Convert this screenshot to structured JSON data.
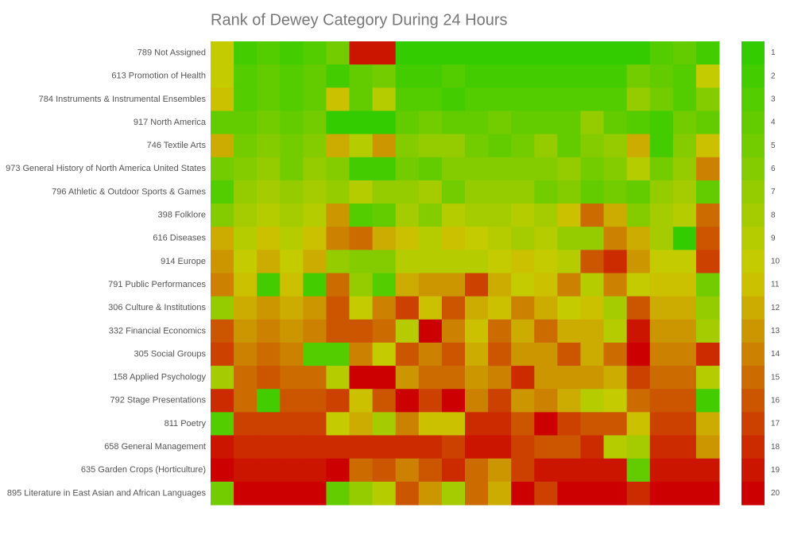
{
  "chart_data": {
    "type": "heatmap",
    "title": "Rank of Dewey Category During 24 Hours",
    "rows": [
      "789 Not Assigned",
      "613 Promotion of Health",
      "784 Instruments & Instrumental Ensembles",
      "917 North America",
      "746 Textile Arts",
      "973 General History of North America United States",
      "796 Athletic & Outdoor Sports & Games",
      "398 Folklore",
      "616 Diseases",
      "914 Europe",
      "791 Public Performances",
      "306 Culture & Institutions",
      "332 Financial Economics",
      "305 Social Groups",
      "158 Applied Psychology",
      "792 Stage Presentations",
      "811 Poetry",
      "658 General Management",
      "635 Garden Crops (Horticulture)",
      "895 Literature in East Asian and African Languages"
    ],
    "values": [
      [
        10,
        2,
        3,
        2,
        3,
        5,
        19,
        19,
        1,
        1,
        1,
        1,
        1,
        1,
        1,
        1,
        1,
        1,
        1,
        3,
        4,
        2
      ],
      [
        10,
        3,
        4,
        3,
        4,
        2,
        4,
        5,
        2,
        2,
        3,
        2,
        2,
        2,
        2,
        2,
        2,
        2,
        5,
        4,
        3,
        10
      ],
      [
        11,
        3,
        4,
        3,
        4,
        11,
        4,
        9,
        3,
        3,
        2,
        3,
        3,
        3,
        3,
        3,
        3,
        3,
        7,
        5,
        3,
        6
      ],
      [
        4,
        4,
        5,
        4,
        5,
        1,
        1,
        1,
        4,
        5,
        4,
        4,
        5,
        4,
        4,
        4,
        7,
        4,
        3,
        2,
        5,
        4
      ],
      [
        12,
        5,
        6,
        5,
        6,
        12,
        9,
        13,
        6,
        7,
        7,
        5,
        4,
        5,
        7,
        4,
        6,
        7,
        12,
        2,
        6,
        11
      ],
      [
        5,
        6,
        7,
        5,
        7,
        6,
        2,
        2,
        5,
        4,
        6,
        6,
        6,
        6,
        6,
        7,
        5,
        6,
        9,
        5,
        7,
        14
      ],
      [
        3,
        7,
        8,
        7,
        8,
        7,
        9,
        7,
        7,
        8,
        5,
        7,
        7,
        7,
        5,
        6,
        4,
        5,
        4,
        7,
        8,
        4
      ],
      [
        6,
        8,
        9,
        8,
        9,
        13,
        3,
        4,
        8,
        6,
        9,
        8,
        8,
        9,
        8,
        11,
        15,
        12,
        6,
        8,
        9,
        15
      ],
      [
        12,
        9,
        11,
        9,
        11,
        14,
        15,
        12,
        11,
        9,
        11,
        10,
        9,
        8,
        9,
        7,
        7,
        14,
        12,
        8,
        1,
        16
      ],
      [
        13,
        10,
        12,
        10,
        12,
        7,
        6,
        6,
        9,
        9,
        9,
        9,
        10,
        11,
        10,
        9,
        16,
        18,
        13,
        10,
        10,
        17
      ],
      [
        14,
        11,
        2,
        11,
        2,
        15,
        7,
        3,
        12,
        13,
        13,
        17,
        12,
        10,
        11,
        14,
        9,
        14,
        10,
        11,
        11,
        5
      ],
      [
        7,
        12,
        13,
        12,
        13,
        16,
        10,
        14,
        17,
        11,
        16,
        12,
        11,
        14,
        12,
        10,
        11,
        8,
        16,
        12,
        12,
        7
      ],
      [
        16,
        13,
        14,
        13,
        14,
        16,
        16,
        15,
        9,
        20,
        14,
        11,
        15,
        12,
        15,
        12,
        12,
        9,
        19,
        13,
        13,
        8
      ],
      [
        17,
        14,
        15,
        14,
        3,
        3,
        14,
        10,
        16,
        14,
        16,
        12,
        16,
        13,
        13,
        16,
        12,
        15,
        20,
        14,
        14,
        18
      ],
      [
        8,
        15,
        16,
        15,
        15,
        9,
        20,
        20,
        13,
        15,
        15,
        13,
        14,
        18,
        13,
        13,
        13,
        12,
        17,
        15,
        15,
        9
      ],
      [
        18,
        15,
        2,
        16,
        16,
        17,
        11,
        16,
        20,
        17,
        20,
        14,
        17,
        13,
        14,
        12,
        9,
        10,
        15,
        16,
        16,
        2
      ],
      [
        3,
        17,
        17,
        17,
        17,
        10,
        12,
        8,
        14,
        11,
        11,
        18,
        18,
        16,
        20,
        17,
        16,
        16,
        11,
        17,
        17,
        12
      ],
      [
        19,
        18,
        18,
        18,
        18,
        18,
        18,
        18,
        18,
        18,
        17,
        19,
        19,
        17,
        16,
        16,
        18,
        9,
        8,
        18,
        18,
        13
      ],
      [
        20,
        19,
        19,
        19,
        19,
        20,
        15,
        16,
        14,
        16,
        18,
        15,
        13,
        17,
        19,
        19,
        19,
        19,
        4,
        19,
        19,
        19
      ],
      [
        5,
        20,
        20,
        20,
        20,
        4,
        7,
        9,
        16,
        13,
        8,
        15,
        12,
        20,
        17,
        20,
        20,
        20,
        18,
        20,
        20,
        20
      ]
    ],
    "zlim": [
      1,
      20
    ],
    "color_scale": [
      "#33cc00",
      "#cccc00",
      "#cc0000"
    ],
    "colorbar_ticks": [
      1,
      2,
      3,
      4,
      5,
      6,
      7,
      8,
      9,
      10,
      11,
      12,
      13,
      14,
      15,
      16,
      17,
      18,
      19,
      20
    ]
  }
}
